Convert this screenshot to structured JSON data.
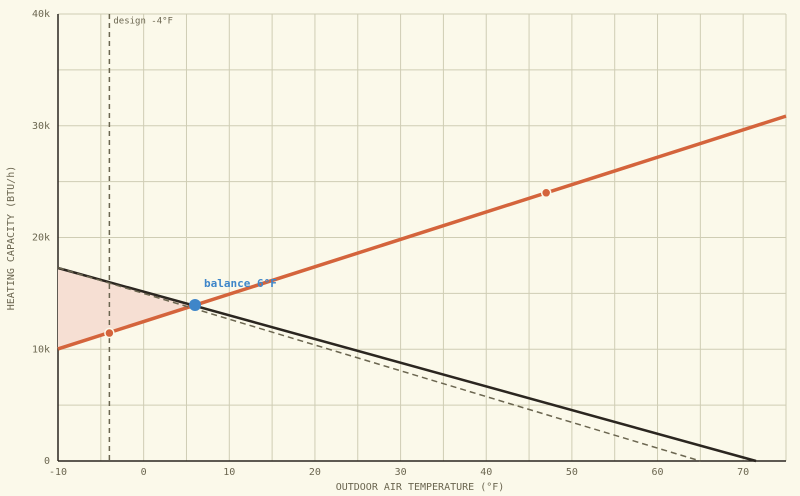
{
  "chart_data": {
    "type": "line",
    "xlabel": "OUTDOOR AIR TEMPERATURE (°F)",
    "ylabel": "HEATING CAPACITY (BTU/h)",
    "xlim": [
      -10,
      75
    ],
    "ylim": [
      0,
      40000
    ],
    "xticks": [
      -10,
      0,
      10,
      20,
      30,
      40,
      50,
      60,
      70
    ],
    "yticks": [
      0,
      {
        "value": 10000,
        "label": "10k"
      },
      {
        "value": 20000,
        "label": "20k"
      },
      {
        "value": 30000,
        "label": "30k"
      },
      {
        "value": 40000,
        "label": "40k"
      }
    ],
    "xminorticks": [
      -5,
      5,
      15,
      25,
      35,
      45,
      55,
      65,
      75
    ],
    "yminorticks": [
      5000,
      15000,
      25000,
      35000
    ],
    "grid": true,
    "series": [
      {
        "color": "#d4643c",
        "style": "solid",
        "x": [
          -10,
          75
        ],
        "values": [
          10030,
          30860
        ]
      },
      {
        "color": "#2b2620",
        "style": "solid",
        "x": [
          -10,
          71.5
        ],
        "values": [
          17270,
          0
        ]
      },
      {
        "color": "#6b6650",
        "style": "dashed",
        "x": [
          -10,
          65
        ],
        "values": [
          17300,
          0
        ]
      }
    ],
    "points": {
      "color": "#d4643c",
      "x": [
        -4,
        47
      ],
      "values": [
        11450,
        24000
      ]
    },
    "balance": {
      "color": "#3f86c9",
      "x": 6,
      "value": 13960,
      "label": "balance 6°F"
    },
    "design": {
      "x": -4,
      "label": "design -4°F"
    },
    "shade_color": "#f6dfd3"
  }
}
